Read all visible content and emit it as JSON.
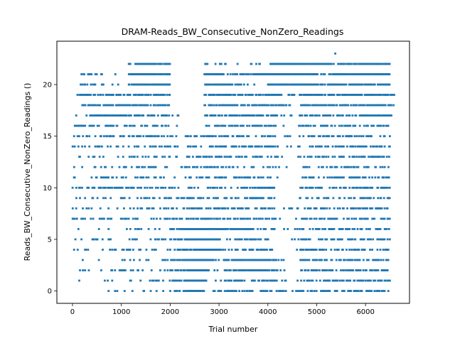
{
  "chart_data": {
    "type": "scatter",
    "title": "DRAM-Reads_BW_Consecutive_NonZero_Readings",
    "xlabel": "Trial number",
    "ylabel": "Reads_BW_Consecutive_NonZero_Readings ()",
    "xlim": [
      -320,
      6900
    ],
    "ylim": [
      -1.2,
      24.2
    ],
    "xticks": [
      0,
      1000,
      2000,
      3000,
      4000,
      5000,
      6000
    ],
    "yticks": [
      0,
      5,
      10,
      15,
      20
    ],
    "grid": false,
    "marker_color": "#1f77b4",
    "x_extent": [
      0,
      6600
    ],
    "notable_points": [
      {
        "x": 5380,
        "y": 23
      }
    ],
    "level_density": [
      {
        "y": 0,
        "segments": [
          [
            0,
            1150,
            0.1
          ],
          [
            1150,
            2000,
            0.18
          ],
          [
            2000,
            2300,
            0.35
          ],
          [
            2300,
            2700,
            0.95
          ],
          [
            2700,
            2950,
            0.15
          ],
          [
            2950,
            4100,
            0.55
          ],
          [
            4100,
            4650,
            0.15
          ],
          [
            4650,
            6500,
            0.45
          ]
        ]
      },
      {
        "y": 1,
        "segments": [
          [
            0,
            1150,
            0.1
          ],
          [
            1150,
            2000,
            0.18
          ],
          [
            2000,
            2300,
            0.45
          ],
          [
            2300,
            2750,
            0.95
          ],
          [
            2750,
            3100,
            0.15
          ],
          [
            3100,
            4200,
            0.55
          ],
          [
            4200,
            4650,
            0.1
          ],
          [
            4650,
            6500,
            0.45
          ]
        ]
      },
      {
        "y": 2,
        "segments": [
          [
            0,
            1150,
            0.08
          ],
          [
            1150,
            2000,
            0.15
          ],
          [
            2000,
            2400,
            0.4
          ],
          [
            2400,
            2800,
            0.95
          ],
          [
            2800,
            3100,
            0.12
          ],
          [
            3100,
            4200,
            0.55
          ],
          [
            4200,
            4650,
            0.08
          ],
          [
            4650,
            6500,
            0.45
          ]
        ]
      },
      {
        "y": 3,
        "segments": [
          [
            0,
            1150,
            0.1
          ],
          [
            1150,
            2000,
            0.15
          ],
          [
            2000,
            2300,
            0.45
          ],
          [
            2300,
            2900,
            0.95
          ],
          [
            2900,
            3300,
            0.45
          ],
          [
            3300,
            4200,
            0.85
          ],
          [
            4200,
            4650,
            0.1
          ],
          [
            4650,
            6500,
            0.5
          ]
        ]
      },
      {
        "y": 4,
        "segments": [
          [
            0,
            1150,
            0.25
          ],
          [
            1150,
            2000,
            0.22
          ],
          [
            2000,
            2300,
            0.5
          ],
          [
            2300,
            2900,
            0.85
          ],
          [
            2900,
            4100,
            0.55
          ],
          [
            4100,
            4650,
            0.12
          ],
          [
            4650,
            6500,
            0.4
          ]
        ]
      },
      {
        "y": 5,
        "segments": [
          [
            0,
            1150,
            0.1
          ],
          [
            1150,
            2000,
            0.2
          ],
          [
            2000,
            2300,
            0.35
          ],
          [
            2300,
            3000,
            0.9
          ],
          [
            3000,
            4100,
            0.45
          ],
          [
            4100,
            4650,
            0.1
          ],
          [
            4650,
            6500,
            0.35
          ]
        ]
      },
      {
        "y": 6,
        "segments": [
          [
            0,
            1150,
            0.1
          ],
          [
            1150,
            2000,
            0.15
          ],
          [
            2000,
            2300,
            0.4
          ],
          [
            2300,
            3700,
            0.9
          ],
          [
            3700,
            4150,
            0.45
          ],
          [
            4150,
            4650,
            0.08
          ],
          [
            4650,
            6500,
            0.35
          ]
        ]
      },
      {
        "y": 7,
        "segments": [
          [
            0,
            1150,
            0.25
          ],
          [
            1150,
            2000,
            0.2
          ],
          [
            2000,
            2300,
            0.3
          ],
          [
            2300,
            4200,
            0.45
          ],
          [
            4200,
            4650,
            0.08
          ],
          [
            4650,
            6500,
            0.4
          ]
        ]
      },
      {
        "y": 8,
        "segments": [
          [
            0,
            1150,
            0.15
          ],
          [
            1150,
            2000,
            0.2
          ],
          [
            2000,
            2300,
            0.25
          ],
          [
            2300,
            4150,
            0.4
          ],
          [
            4150,
            4650,
            0.08
          ],
          [
            4650,
            6500,
            0.35
          ]
        ]
      },
      {
        "y": 9,
        "segments": [
          [
            0,
            1150,
            0.2
          ],
          [
            1150,
            2000,
            0.22
          ],
          [
            2000,
            2300,
            0.2
          ],
          [
            2300,
            4150,
            0.4
          ],
          [
            4150,
            4650,
            0.08
          ],
          [
            4650,
            6500,
            0.35
          ]
        ]
      },
      {
        "y": 10,
        "segments": [
          [
            0,
            1150,
            0.3
          ],
          [
            1150,
            2000,
            0.25
          ],
          [
            2000,
            2250,
            0.25
          ],
          [
            2300,
            4150,
            0.35
          ],
          [
            4150,
            4650,
            0.08
          ],
          [
            4650,
            6500,
            0.4
          ]
        ]
      },
      {
        "y": 11,
        "segments": [
          [
            0,
            1150,
            0.15
          ],
          [
            1150,
            2000,
            0.2
          ],
          [
            2000,
            2250,
            0.1
          ],
          [
            2300,
            4150,
            0.3
          ],
          [
            4150,
            4650,
            0.1
          ],
          [
            4650,
            6500,
            0.35
          ]
        ]
      },
      {
        "y": 12,
        "segments": [
          [
            0,
            1150,
            0.2
          ],
          [
            1150,
            2000,
            0.25
          ],
          [
            2000,
            2250,
            0.1
          ],
          [
            2300,
            4200,
            0.35
          ],
          [
            4200,
            4650,
            0.1
          ],
          [
            4650,
            6500,
            0.35
          ]
        ]
      },
      {
        "y": 13,
        "segments": [
          [
            0,
            1150,
            0.2
          ],
          [
            1150,
            2000,
            0.3
          ],
          [
            2000,
            2250,
            0.12
          ],
          [
            2300,
            4200,
            0.4
          ],
          [
            4200,
            4650,
            0.1
          ],
          [
            4650,
            6500,
            0.4
          ]
        ]
      },
      {
        "y": 14,
        "segments": [
          [
            0,
            1150,
            0.2
          ],
          [
            1150,
            2000,
            0.25
          ],
          [
            2000,
            2250,
            0.12
          ],
          [
            2300,
            4200,
            0.35
          ],
          [
            4200,
            4650,
            0.1
          ],
          [
            4650,
            6500,
            0.35
          ]
        ]
      },
      {
        "y": 15,
        "segments": [
          [
            0,
            1150,
            0.25
          ],
          [
            1150,
            2000,
            0.35
          ],
          [
            2000,
            2250,
            0.1
          ],
          [
            2300,
            4200,
            0.4
          ],
          [
            4200,
            4650,
            0.1
          ],
          [
            4650,
            6500,
            0.4
          ]
        ]
      },
      {
        "y": 16,
        "segments": [
          [
            0,
            1150,
            0.4
          ],
          [
            1150,
            2000,
            0.3
          ],
          [
            2000,
            2250,
            0.08
          ],
          [
            2600,
            4200,
            0.4
          ],
          [
            4200,
            4650,
            0.1
          ],
          [
            4650,
            6500,
            0.45
          ]
        ]
      },
      {
        "y": 17,
        "segments": [
          [
            0,
            400,
            0.15
          ],
          [
            400,
            1150,
            0.8
          ],
          [
            1150,
            2000,
            0.4
          ],
          [
            2000,
            2250,
            0.1
          ],
          [
            2700,
            4300,
            0.55
          ],
          [
            4300,
            4650,
            0.15
          ],
          [
            4650,
            6600,
            0.55
          ]
        ]
      },
      {
        "y": 18,
        "segments": [
          [
            0,
            200,
            0.1
          ],
          [
            200,
            1150,
            0.7
          ],
          [
            1150,
            2000,
            0.45
          ],
          [
            2700,
            4300,
            0.6
          ],
          [
            4300,
            4650,
            0.2
          ],
          [
            4650,
            6600,
            0.65
          ]
        ]
      },
      {
        "y": 19,
        "segments": [
          [
            100,
            1000,
            0.55
          ],
          [
            1000,
            1150,
            0.2
          ],
          [
            1150,
            2000,
            0.55
          ],
          [
            2700,
            4300,
            0.65
          ],
          [
            4300,
            4650,
            0.25
          ],
          [
            4650,
            6600,
            0.7
          ]
        ]
      },
      {
        "y": 20,
        "segments": [
          [
            150,
            650,
            0.45
          ],
          [
            650,
            1150,
            0.1
          ],
          [
            1150,
            2000,
            0.8
          ],
          [
            2700,
            3300,
            0.7
          ],
          [
            3300,
            4000,
            0.3
          ],
          [
            4000,
            5000,
            0.95
          ],
          [
            5000,
            5350,
            0.4
          ],
          [
            5350,
            6500,
            0.85
          ]
        ]
      },
      {
        "y": 21,
        "segments": [
          [
            150,
            650,
            0.4
          ],
          [
            650,
            1150,
            0.05
          ],
          [
            1150,
            2000,
            0.85
          ],
          [
            2700,
            3100,
            0.95
          ],
          [
            3100,
            3700,
            0.4
          ],
          [
            3700,
            5000,
            0.95
          ],
          [
            5000,
            5350,
            0.3
          ],
          [
            5350,
            6500,
            0.9
          ]
        ]
      },
      {
        "y": 22,
        "segments": [
          [
            1150,
            2000,
            0.7
          ],
          [
            2700,
            3200,
            0.25
          ],
          [
            3200,
            3700,
            0.1
          ],
          [
            3700,
            4050,
            0.2
          ],
          [
            4050,
            5300,
            0.95
          ],
          [
            5300,
            5500,
            0.3
          ],
          [
            5500,
            6500,
            0.85
          ]
        ]
      }
    ]
  }
}
